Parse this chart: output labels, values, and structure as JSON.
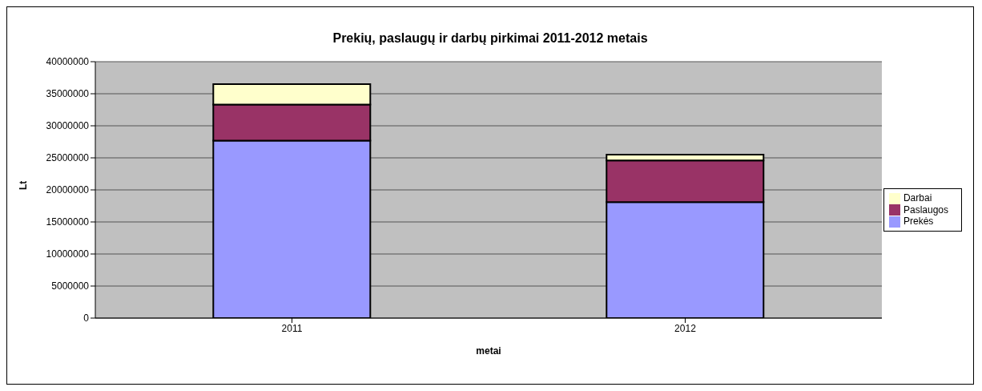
{
  "chart_data": {
    "type": "bar",
    "title": "Prekių, paslaugų ir darbų pirkimai 2011-2012 metais",
    "xlabel": "metai",
    "ylabel": "Lt",
    "categories": [
      "2011",
      "2012"
    ],
    "stacked": true,
    "series": [
      {
        "name": "Prekės",
        "color": "#9999ff",
        "values": [
          27700000,
          18100000
        ]
      },
      {
        "name": "Paslaugos",
        "color": "#993366",
        "values": [
          5600000,
          6500000
        ]
      },
      {
        "name": "Darbai",
        "color": "#ffffcc",
        "values": [
          3200000,
          900000
        ]
      }
    ],
    "ylim": [
      0,
      40000000
    ],
    "yticks": [
      0,
      5000000,
      10000000,
      15000000,
      20000000,
      25000000,
      30000000,
      35000000,
      40000000
    ],
    "grid": "y",
    "legend": "right"
  }
}
